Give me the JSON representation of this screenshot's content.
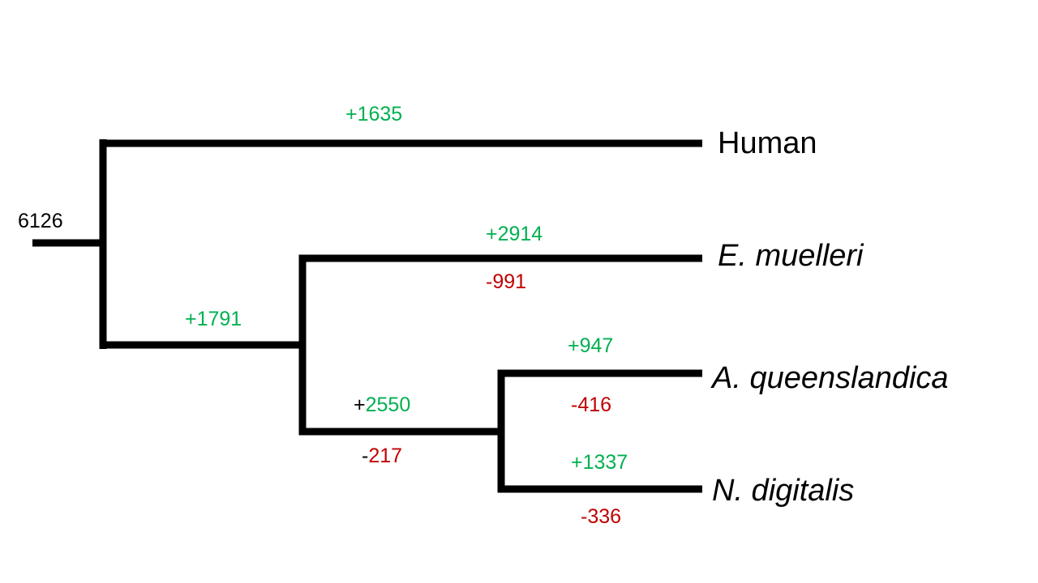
{
  "colors": {
    "gain": "#00b050",
    "loss": "#c00000",
    "root": "#000000",
    "branch": "#000000"
  },
  "root": {
    "count": "6126"
  },
  "taxa": [
    {
      "id": "human",
      "label": "Human",
      "italic": false
    },
    {
      "id": "e-muelleri",
      "label": "E. muelleri",
      "italic": true
    },
    {
      "id": "a-queenslandica",
      "label": "A. queenslandica",
      "italic": true
    },
    {
      "id": "n-digitalis",
      "label": "N. digitalis",
      "italic": true
    }
  ],
  "branches": {
    "human": {
      "gain": "+1635"
    },
    "sponges": {
      "gain": "+1791"
    },
    "e_muelleri": {
      "gain": "+2914",
      "loss": "-991"
    },
    "aq_nd_clade": {
      "gain_sign": "+",
      "gain_value": "2550",
      "loss_sign": "-",
      "loss_value": "217"
    },
    "a_queenslandica": {
      "gain": "+947",
      "loss": "-416"
    },
    "n_digitalis": {
      "gain": "+1337",
      "loss": "-336"
    }
  }
}
